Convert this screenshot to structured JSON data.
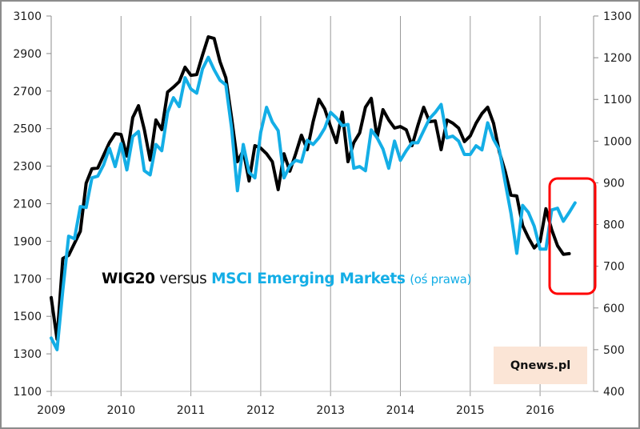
{
  "chart_data": {
    "type": "line",
    "title": "WIG20 versus MSCI Emerging Markets (oś prawa)",
    "title_parts": {
      "series1": "WIG20",
      "connector": "versus",
      "series2": "MSCI Emerging Markets",
      "note": "(oś prawa)"
    },
    "xlabel": "",
    "ylabel_left": "",
    "ylabel_right": "",
    "x_tick_labels": [
      "2009",
      "2010",
      "2011",
      "2012",
      "2013",
      "2014",
      "2015",
      "2016"
    ],
    "x_range": [
      2009.0,
      2016.75
    ],
    "y_left_ticks": [
      1100,
      1300,
      1500,
      1700,
      1900,
      2100,
      2300,
      2500,
      2700,
      2900,
      3100
    ],
    "y_left_range": [
      1100,
      3100
    ],
    "y_right_ticks": [
      400,
      500,
      600,
      700,
      800,
      900,
      1000,
      1100,
      1200,
      1300
    ],
    "y_right_range": [
      400,
      1300
    ],
    "grid": "vertical lines at each year",
    "legend": "inline title text, center-left",
    "annotation": "red rounded rectangle highlighting 2016 divergence",
    "brand_label": "Qnews.pl",
    "colors": {
      "wig20": "#000000",
      "msci": "#14aee6",
      "highlight": "#ff0000",
      "brand_bg": "#fbe5d6"
    },
    "series": [
      {
        "name": "WIG20",
        "axis": "left",
        "start": "2009-01",
        "frequency": "monthly",
        "values": [
          1600,
          1378,
          1808,
          1825,
          1889,
          1953,
          2209,
          2286,
          2290,
          2358,
          2426,
          2473,
          2469,
          2354,
          2559,
          2622,
          2495,
          2333,
          2546,
          2495,
          2695,
          2721,
          2750,
          2827,
          2784,
          2788,
          2891,
          2989,
          2980,
          2857,
          2771,
          2558,
          2324,
          2383,
          2221,
          2409,
          2396,
          2366,
          2324,
          2175,
          2366,
          2273,
          2366,
          2465,
          2388,
          2537,
          2656,
          2605,
          2511,
          2426,
          2588,
          2324,
          2426,
          2477,
          2614,
          2661,
          2452,
          2601,
          2546,
          2503,
          2511,
          2494,
          2409,
          2516,
          2614,
          2537,
          2541,
          2388,
          2546,
          2529,
          2503,
          2431,
          2461,
          2529,
          2580,
          2614,
          2529,
          2375,
          2273,
          2145,
          2141,
          1983,
          1919,
          1864,
          1898,
          2073,
          1962,
          1876,
          1830,
          1834
        ]
      },
      {
        "name": "MSCI Emerging Markets",
        "axis": "right",
        "start": "2009-01",
        "frequency": "monthly",
        "values": [
          528,
          500,
          642,
          772,
          766,
          843,
          841,
          912,
          916,
          943,
          983,
          939,
          994,
          931,
          1011,
          1023,
          929,
          919,
          992,
          977,
          1069,
          1104,
          1083,
          1152,
          1125,
          1115,
          1173,
          1201,
          1171,
          1146,
          1135,
          1031,
          881,
          992,
          925,
          912,
          1021,
          1081,
          1046,
          1025,
          912,
          941,
          954,
          950,
          1002,
          992,
          1008,
          1031,
          1069,
          1056,
          1037,
          1040,
          935,
          939,
          929,
          1027,
          1008,
          981,
          935,
          1000,
          954,
          977,
          996,
          996,
          1025,
          1054,
          1069,
          1088,
          1008,
          1012,
          1000,
          968,
          968,
          989,
          979,
          1044,
          1004,
          979,
          902,
          827,
          731,
          846,
          829,
          796,
          741,
          741,
          835,
          839,
          808,
          829,
          852
        ]
      }
    ]
  }
}
